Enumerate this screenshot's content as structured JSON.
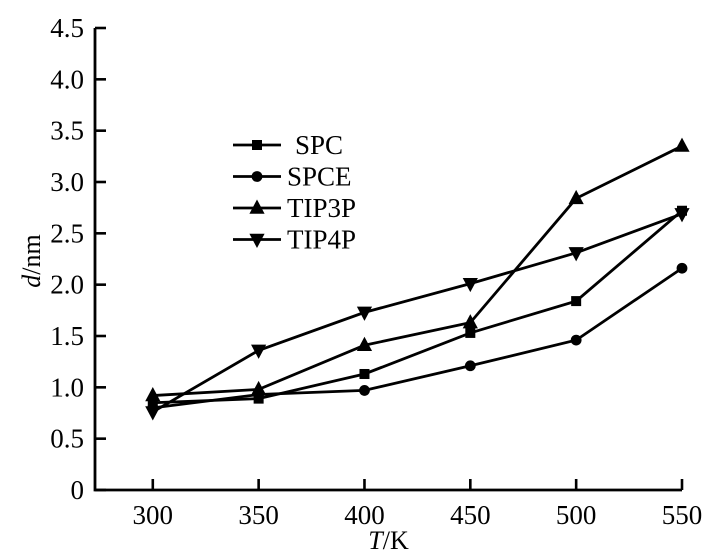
{
  "chart_data": {
    "type": "line",
    "x": [
      300,
      350,
      400,
      450,
      500,
      550
    ],
    "series": [
      {
        "name": "SPC",
        "marker": "square",
        "values": [
          0.85,
          0.89,
          1.13,
          1.53,
          1.84,
          2.72
        ]
      },
      {
        "name": "SPCE",
        "marker": "circle",
        "values": [
          0.8,
          0.93,
          0.97,
          1.21,
          1.46,
          2.16
        ]
      },
      {
        "name": "TIP3P",
        "marker": "triangle-up",
        "values": [
          0.92,
          0.98,
          1.41,
          1.63,
          2.84,
          3.35
        ]
      },
      {
        "name": "TIP4P",
        "marker": "triangle-down",
        "values": [
          0.76,
          1.36,
          1.73,
          2.01,
          2.31,
          2.69
        ]
      }
    ],
    "title": "",
    "xlabel": {
      "variable": "T",
      "rest": "/K"
    },
    "ylabel": {
      "variable": "d",
      "rest": "/nm"
    },
    "xlim": [
      272.7,
      550
    ],
    "ylim": [
      0,
      4.5
    ],
    "x_ticks": {
      "values": [
        300,
        350,
        400,
        450,
        500,
        550
      ],
      "labels": [
        "300",
        "350",
        "400",
        "450",
        "500",
        "550"
      ]
    },
    "y_ticks": {
      "values": [
        0,
        0.5,
        1.0,
        1.5,
        2.0,
        2.5,
        3.0,
        3.5,
        4.0,
        4.5
      ],
      "labels": [
        "0",
        "0.5",
        "1.0",
        "1.5",
        "2.0",
        "2.5",
        "3.0",
        "3.5",
        "4.0",
        "4.5"
      ]
    },
    "legend": {
      "position": "upper-center-left",
      "entries": [
        "SPC",
        "SPCE",
        "TIP3P",
        "TIP4P"
      ]
    },
    "grid": false,
    "colors": {
      "foreground": "#000000",
      "background": "#ffffff"
    }
  }
}
